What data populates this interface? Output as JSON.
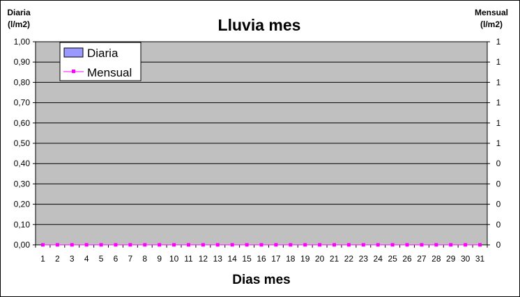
{
  "chart_data": {
    "type": "bar",
    "title": "Lluvia mes",
    "xlabel": "Dias mes",
    "ylabel_left": [
      "Diaria",
      "(l/m2)"
    ],
    "ylabel_right": [
      "Mensual",
      "(l/m2)"
    ],
    "categories": [
      "1",
      "2",
      "3",
      "4",
      "5",
      "6",
      "7",
      "8",
      "9",
      "10",
      "11",
      "12",
      "13",
      "14",
      "15",
      "16",
      "17",
      "18",
      "19",
      "20",
      "21",
      "22",
      "23",
      "24",
      "25",
      "26",
      "27",
      "28",
      "29",
      "30",
      "31"
    ],
    "series": [
      {
        "name": "Diaria",
        "type": "bar",
        "axis": "left",
        "color": "#9999ff",
        "values": [
          0,
          0,
          0,
          0,
          0,
          0,
          0,
          0,
          0,
          0,
          0,
          0,
          0,
          0,
          0,
          0,
          0,
          0,
          0,
          0,
          0,
          0,
          0,
          0,
          0,
          0,
          0,
          0,
          0,
          0,
          0
        ]
      },
      {
        "name": "Mensual",
        "type": "line",
        "axis": "right",
        "color": "#ff00ff",
        "marker": "square",
        "values": [
          0,
          0,
          0,
          0,
          0,
          0,
          0,
          0,
          0,
          0,
          0,
          0,
          0,
          0,
          0,
          0,
          0,
          0,
          0,
          0,
          0,
          0,
          0,
          0,
          0,
          0,
          0,
          0,
          0,
          0,
          0
        ]
      }
    ],
    "ylim": [
      0,
      1
    ],
    "y_ticks_left": [
      "0,00",
      "0,10",
      "0,20",
      "0,30",
      "0,40",
      "0,50",
      "0,60",
      "0,70",
      "0,80",
      "0,90",
      "1,00"
    ],
    "y_ticks_right": [
      "0",
      "0",
      "0",
      "0",
      "0",
      "1",
      "1",
      "1",
      "1",
      "1",
      "1"
    ],
    "grid": true,
    "plot_background": "#c0c0c0",
    "legend_position": "top-left"
  }
}
